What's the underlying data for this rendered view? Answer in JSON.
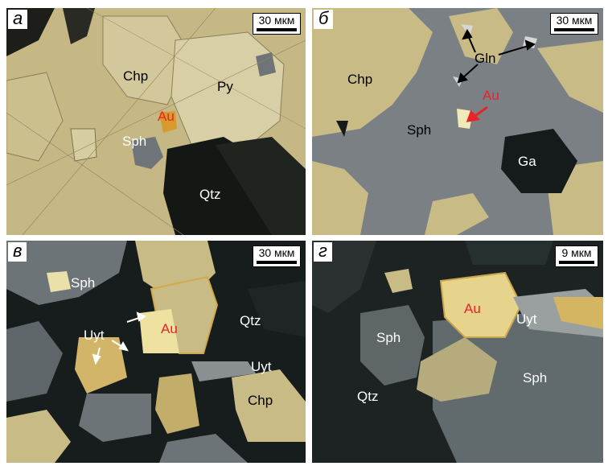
{
  "panels": {
    "a": {
      "letter": "а",
      "scale": "30 мкм",
      "labels": {
        "chp": "Chp",
        "py": "Py",
        "au": "Au",
        "sph": "Sph",
        "qtz": "Qtz"
      }
    },
    "b": {
      "letter": "б",
      "scale": "30 мкм",
      "labels": {
        "chp": "Chp",
        "gln": "Gln",
        "au": "Au",
        "sph": "Sph",
        "ga": "Ga"
      }
    },
    "v": {
      "letter": "в",
      "scale": "30 мкм",
      "labels": {
        "sph": "Sph",
        "uyt1": "Uyt",
        "au": "Au",
        "qtz": "Qtz",
        "uyt2": "Uyt",
        "chp": "Chp"
      }
    },
    "g": {
      "letter": "г",
      "scale": "9 мкм",
      "labels": {
        "au": "Au",
        "uyt": "Uyt",
        "sph1": "Sph",
        "sph2": "Sph",
        "qtz": "Qtz"
      }
    }
  },
  "colors": {
    "chalcopyrite": "#c9bb86",
    "pyrite": "#d8cfa6",
    "sphalerite": "#7b8286",
    "quartz": "#1c211f",
    "gold": "#e8cf6a",
    "label_red": "#e8232a"
  }
}
